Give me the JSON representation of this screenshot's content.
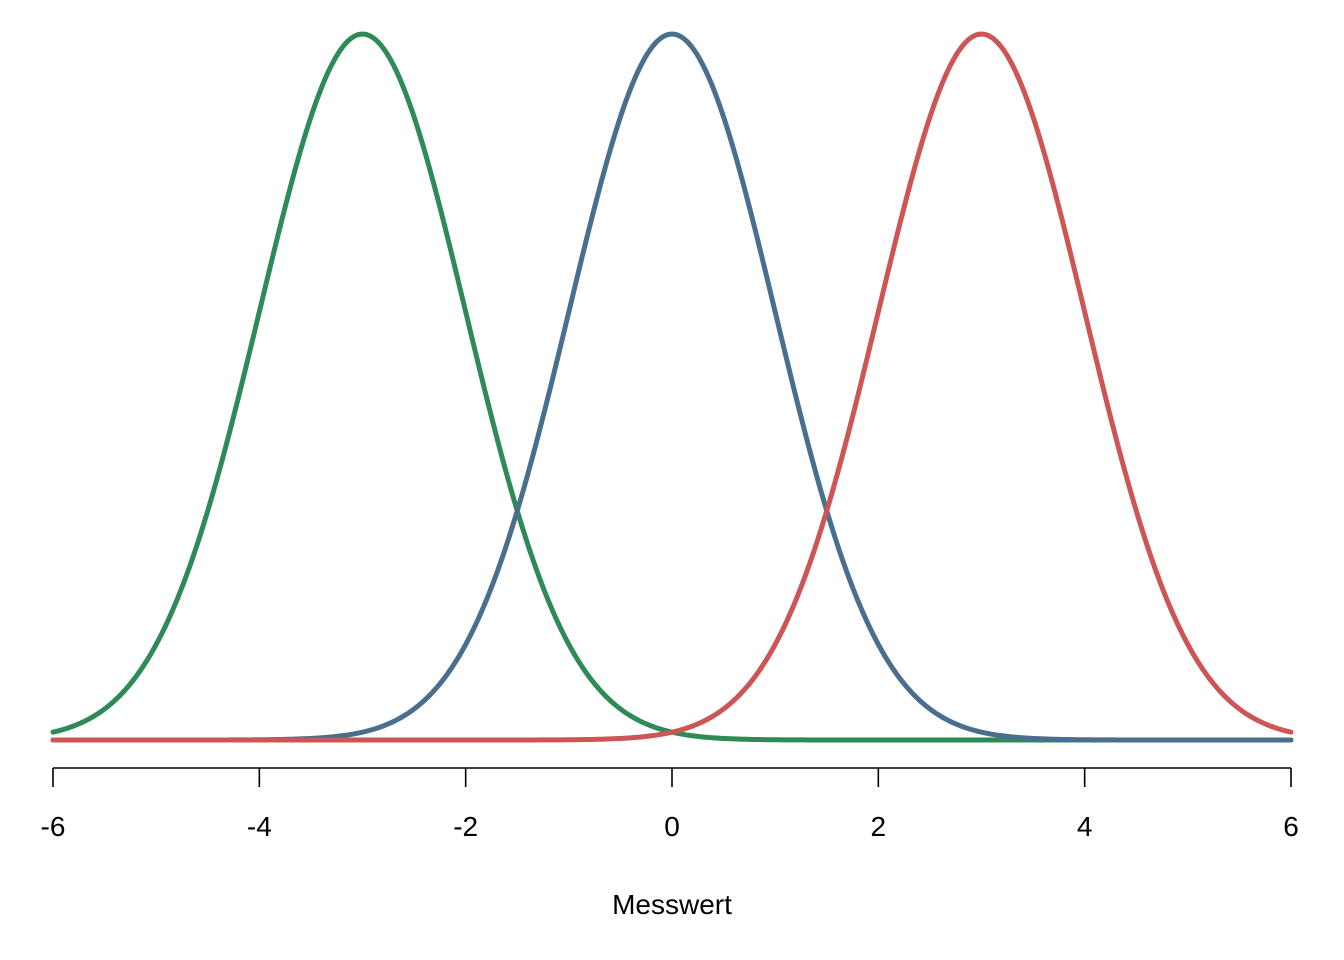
{
  "chart_data": {
    "type": "line",
    "title": "",
    "xlabel": "Messwert",
    "ylabel": "",
    "xlim": [
      -6,
      6
    ],
    "ylim": [
      0,
      1
    ],
    "x_ticks": [
      -6,
      -4,
      -2,
      0,
      2,
      4,
      6
    ],
    "x_tick_labels": [
      "-6",
      "-4",
      "-2",
      "0",
      "2",
      "4",
      "6"
    ],
    "y_axis_visible": false,
    "grid": false,
    "legend": "none",
    "series": [
      {
        "color": "#2e8b57",
        "distribution": "normal",
        "mean": -3,
        "sd": 1,
        "peak": 1
      },
      {
        "color": "#4a6f8e",
        "distribution": "normal",
        "mean": 0,
        "sd": 1,
        "peak": 1
      },
      {
        "color": "#cd5555",
        "distribution": "normal",
        "mean": 3,
        "sd": 1,
        "peak": 1
      }
    ]
  }
}
